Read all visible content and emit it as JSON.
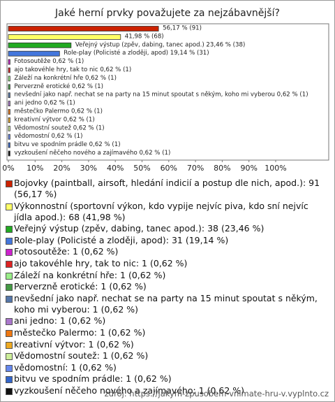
{
  "chart_data": {
    "type": "bar",
    "orientation": "horizontal",
    "title": "Jaké herní prvky považujete za nejzábavnější?",
    "categories": [
      "Bojovky (paintball, airsoft, hledání indicií a postup dle nich, apod.)",
      "Výkonnostní (sportovní výkon, kdo vypije nejvíc piva, kdo sní nejvíc jídla apod.)",
      "Veřejný výstup (zpěv, dabing, tanec apod.)",
      "Role-play (Policisté a zloději, apod)",
      "Fotosoutěže",
      "ajo takovéhle hry, tak to nic",
      "Záleží na konkrétní hře",
      "Perverzně erotické",
      "nevšední jako např. nechat se na party na 15 minut spoutat s někým, koho mi vyberou",
      "ani jedno",
      "městečko Palermo",
      "kreativní výtvor",
      "Vědomostní soutež",
      "vědomostní",
      "bitvu ve spodním prádle",
      "vyzkoušení něčeho nového a zajímavého"
    ],
    "values": [
      56.17,
      41.98,
      23.46,
      19.14,
      0.62,
      0.62,
      0.62,
      0.62,
      0.62,
      0.62,
      0.62,
      0.62,
      0.62,
      0.62,
      0.62,
      0.62
    ],
    "value_labels": [
      "56,17 % (91)",
      "41,98 % (68)",
      "Veřejný výstup (zpěv, dabing, tanec apod.) 23,46 % (38)",
      "Role-play (Policisté a zloději, apod) 19,14 % (31)",
      "Fotosoutěže 0,62 % (1)",
      "ajo takovéhle hry, tak to nic 0,62 % (1)",
      "Záleží na konkrétní hře 0,62 % (1)",
      "Perverzně erotické 0,62 % (1)",
      "nevšední jako např. nechat se na party na 15 minut spoutat s někým, koho mi vyberou 0,62 % (1)",
      "ani jedno 0,62 % (1)",
      "městečko Palermo 0,62 % (1)",
      "kreativní výtvor 0,62 % (1)",
      "Vědomostní soutež 0,62 % (1)",
      "vědomostní 0,62 % (1)",
      "bitvu ve spodním prádle 0,62 % (1)",
      "vyzkoušení něčeho nového a zajímavého 0,62 % (1)"
    ],
    "colors": [
      "#cc2200",
      "#ffff66",
      "#22aa22",
      "#4477dd",
      "#cc22cc",
      "#dd2222",
      "#99ee88",
      "#449944",
      "#5577aa",
      "#aa77cc",
      "#ee7711",
      "#eeaa22",
      "#ccee99",
      "#6688ee",
      "#3366cc",
      "#111111"
    ],
    "legend_labels": [
      "Bojovky (paintball, airsoft, hledání indicií a postup dle nich, apod.): 91 (56,17 %)",
      "Výkonnostní (sportovní výkon, kdo vypije nejvíc piva, kdo sní nejvíc jídla apod.): 68 (41,98 %)",
      "Veřejný výstup (zpěv, dabing, tanec apod.): 38 (23,46 %)",
      "Role-play (Policisté a zloději, apod): 31 (19,14 %)",
      "Fotosoutěže: 1 (0,62 %)",
      "ajo takovéhle hry, tak to nic: 1 (0,62 %)",
      "Záleží na konkrétní hře: 1 (0,62 %)",
      "Perverzně erotické: 1 (0,62 %)",
      "nevšední jako např. nechat se na party na 15 minut spoutat s někým, koho mi vyberou: 1 (0,62 %)",
      "ani jedno: 1 (0,62 %)",
      "městečko Palermo: 1 (0,62 %)",
      "kreativní výtvor: 1 (0,62 %)",
      "Vědomostní soutež: 1 (0,62 %)",
      "vědomostní: 1 (0,62 %)",
      "bitvu ve spodním prádle: 1 (0,62 %)",
      "vyzkoušení něčeho nového a zajímavého: 1 (0,62 %)"
    ],
    "xlim": [
      0,
      100
    ],
    "xticks": [
      {
        "value": 0,
        "label": "0%"
      },
      {
        "value": 10,
        "label": "10%"
      },
      {
        "value": 20,
        "label": "20%"
      },
      {
        "value": 30,
        "label": "30%"
      },
      {
        "value": 40,
        "label": "40%"
      },
      {
        "value": 50,
        "label": "50%"
      },
      {
        "value": 60,
        "label": "60%"
      },
      {
        "value": 70,
        "label": "70%"
      },
      {
        "value": 80,
        "label": "80%"
      },
      {
        "value": 90,
        "label": "90%"
      },
      {
        "value": 100,
        "label": "100%"
      }
    ],
    "source": "zdroj: https://jakym-zpusobem-vnimate-hru-v.vyplnto.cz"
  }
}
